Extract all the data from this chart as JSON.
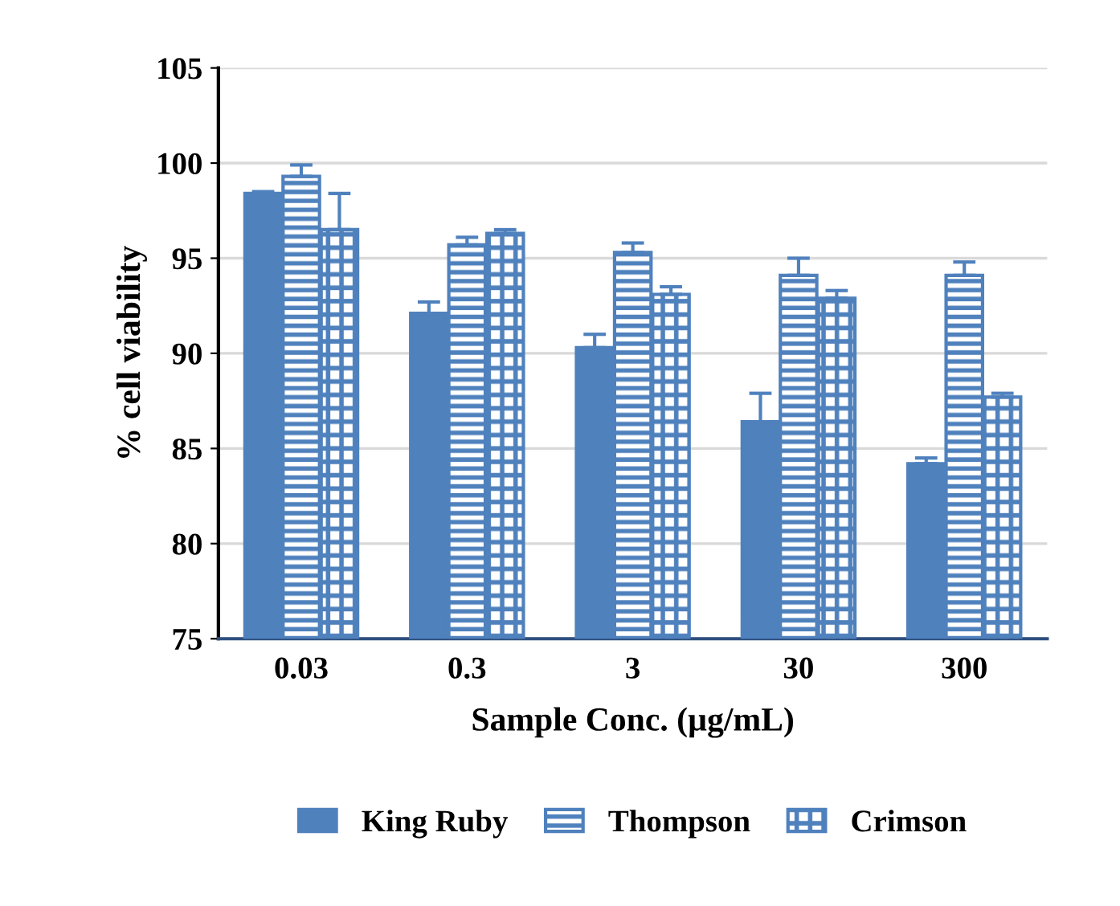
{
  "chart_data": {
    "type": "bar",
    "xlabel": "Sample Conc. (µg/mL)",
    "ylabel": "% cell viability",
    "categories": [
      "0.03",
      "0.3",
      "3",
      "30",
      "300"
    ],
    "series": [
      {
        "name": "King Ruby",
        "color": "#4f81bd",
        "values": [
          98.4,
          92.1,
          90.3,
          86.4,
          84.2
        ],
        "errors": [
          0.1,
          0.6,
          0.7,
          1.5,
          0.3
        ]
      },
      {
        "name": "Thompson",
        "color": "#4f81bd",
        "values": [
          99.3,
          95.7,
          95.3,
          94.1,
          94.1
        ],
        "errors": [
          0.6,
          0.4,
          0.5,
          0.9,
          0.7
        ]
      },
      {
        "name": "Crimson",
        "color": "#4f81bd",
        "values": [
          96.5,
          96.3,
          93.1,
          92.9,
          87.7
        ],
        "errors": [
          1.9,
          0.2,
          0.4,
          0.4,
          0.2
        ]
      }
    ],
    "ylim": [
      75,
      105
    ],
    "yticks": [
      75,
      80,
      85,
      90,
      95,
      100,
      105
    ],
    "grid": "y",
    "legend": "bottom"
  }
}
